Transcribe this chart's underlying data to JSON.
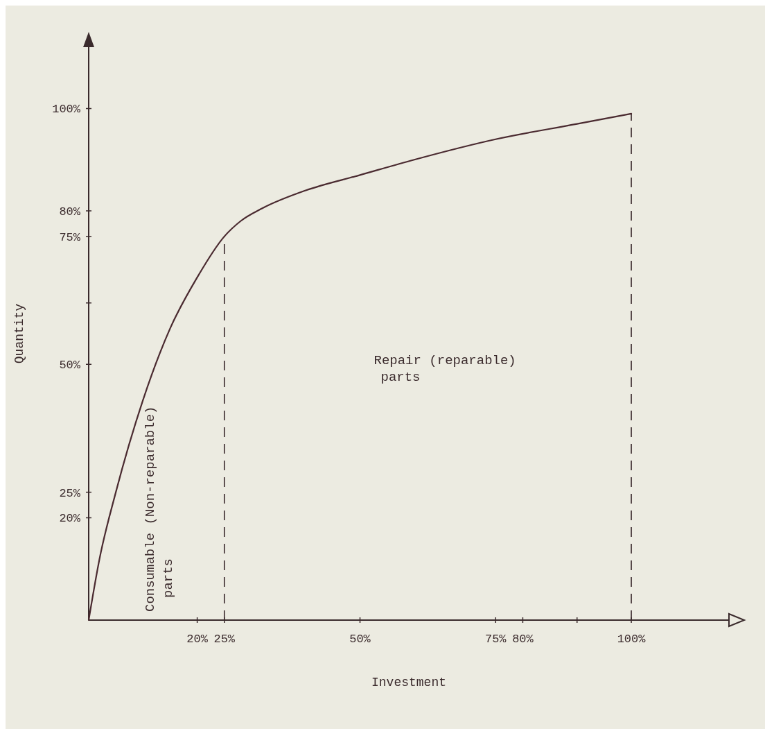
{
  "chart_data": {
    "type": "line",
    "xlabel": "Investment",
    "ylabel": "Quantity",
    "x": [
      0,
      2,
      5,
      10,
      15,
      20,
      25,
      28,
      32,
      40,
      50,
      60,
      75,
      90,
      100
    ],
    "series": [
      {
        "color": "#4a2a30",
        "values": [
          0,
          12,
          25,
          43,
          57,
          67,
          75,
          78,
          80.5,
          84,
          87,
          90,
          94,
          97,
          99
        ]
      }
    ],
    "xlim": [
      0,
      118
    ],
    "xticks": [
      {
        "value": 20,
        "label": "20%"
      },
      {
        "value": 25,
        "label": "25%"
      },
      {
        "value": 50,
        "label": "50%"
      },
      {
        "value": 75,
        "label": "75%"
      },
      {
        "value": 80,
        "label": "80%"
      },
      {
        "value": 90,
        "label": null
      },
      {
        "value": 100,
        "label": "100%"
      }
    ],
    "ylim": [
      0,
      112
    ],
    "yticks": [
      {
        "value": 20,
        "label": "20%"
      },
      {
        "value": 25,
        "label": "25%"
      },
      {
        "value": 50,
        "label": "50%"
      },
      {
        "value": 62,
        "label": null
      },
      {
        "value": 75,
        "label": "75%"
      },
      {
        "value": 80,
        "label": "80%"
      },
      {
        "value": 100,
        "label": "100%"
      }
    ],
    "ref_lines": [
      {
        "axis": "x",
        "value": 25,
        "line_style": "dashed"
      },
      {
        "axis": "x",
        "value": 100,
        "line_style": "dashed"
      }
    ],
    "annotations": [
      "Repair (reparable) parts",
      "Consumable (Non-reparable) parts"
    ],
    "marker": "none",
    "line_style": "solid",
    "grid": false
  }
}
